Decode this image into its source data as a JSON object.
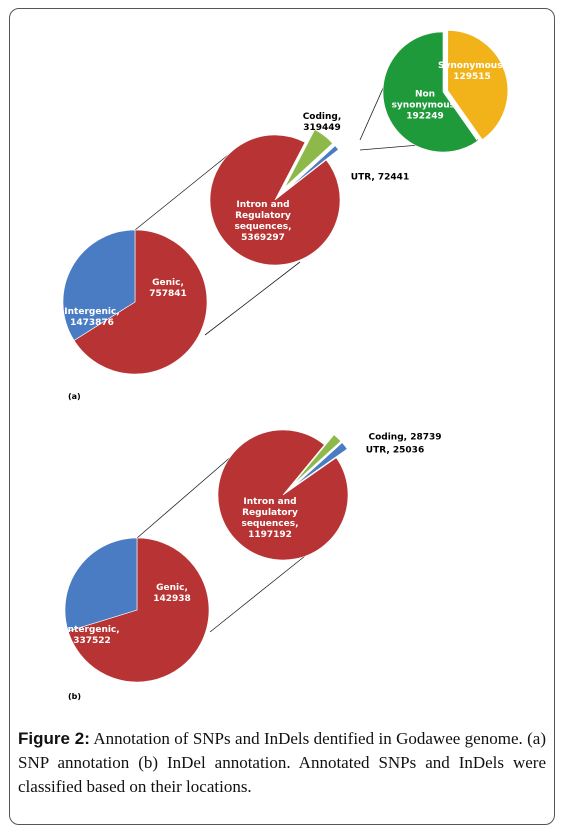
{
  "chart_data": [
    {
      "type": "pie",
      "categories": [
        "Intergenic,",
        "Genic,"
      ],
      "values": [
        1473876,
        757841
      ],
      "colors": [
        "#b83434",
        "#4a7cc4"
      ],
      "panel_label": "(a)"
    },
    {
      "type": "pie",
      "categories": [
        "Intron and Regulatory sequences,",
        "Coding,",
        "UTR,"
      ],
      "values": [
        5369297,
        319449,
        72441
      ],
      "colors": [
        "#b83434",
        "#8db84a",
        "#4a7cc4"
      ]
    },
    {
      "type": "pie",
      "categories": [
        "Non synonymous,",
        "Synonymous,"
      ],
      "values": [
        192249,
        129515
      ],
      "colors": [
        "#1f9a3a",
        "#f2b31a"
      ]
    },
    {
      "type": "pie",
      "categories": [
        "Intergenic,",
        "Genic,"
      ],
      "values": [
        337522,
        142938
      ],
      "colors": [
        "#b83434",
        "#4a7cc4"
      ],
      "panel_label": "(b)"
    },
    {
      "type": "pie",
      "categories": [
        "Intron and Regulatory sequences,",
        "Coding,",
        "UTR,"
      ],
      "values": [
        1197192,
        28739,
        25036
      ],
      "colors": [
        "#b83434",
        "#8db84a",
        "#4a7cc4"
      ]
    }
  ],
  "caption": {
    "label": "Figure 2:",
    "text": "Annotation of SNPs and InDels dentified in Godawee genome. (a) SNP annotation (b) InDel annotation. Annotated SNPs and InDels were classified based on their locations."
  }
}
